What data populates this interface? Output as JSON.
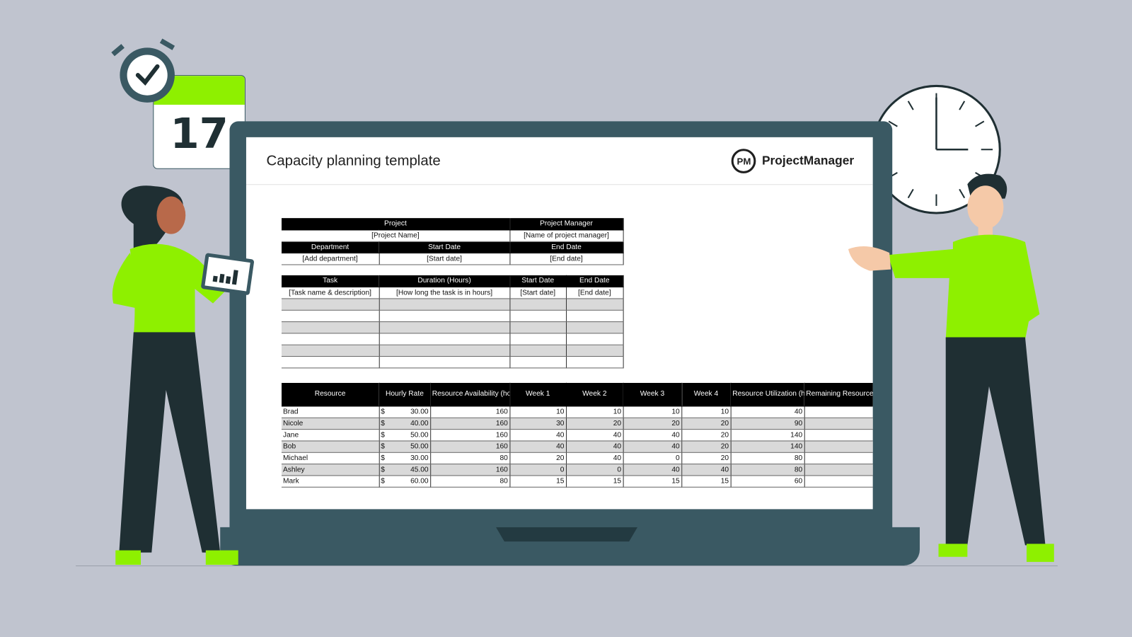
{
  "header": {
    "title": "Capacity planning template",
    "logo_mark": "PM",
    "logo_text": "ProjectManager"
  },
  "calendar": {
    "day": "17",
    "accent": "#8ef000"
  },
  "colors": {
    "background": "#c0c4cf",
    "laptop": "#3a5963",
    "accent_green": "#8ef000"
  },
  "project_table": {
    "headers1": [
      "Project",
      "Project Manager"
    ],
    "values1": [
      "[Project Name]",
      "[Name of project manager]"
    ],
    "headers2": [
      "Department",
      "Start Date",
      "End Date"
    ],
    "values2": [
      "[Add department]",
      "[Start date]",
      "[End date]"
    ]
  },
  "task_table": {
    "headers": [
      "Task",
      "Duration (Hours)",
      "Start Date",
      "End Date"
    ],
    "first_row": [
      "[Task name & description]",
      "[How long the task is in hours]",
      "[Start date]",
      "[End date]"
    ],
    "empty_rows": 6
  },
  "resource_table": {
    "headers": [
      "Resource",
      "Hourly Rate",
      "Resource Availability (hours per month)",
      "Week 1",
      "Week 2",
      "Week 3",
      "Week 4",
      "Resource Utilization (hours per month)",
      "Remaining Resource Availability (hou"
    ],
    "currency": "$",
    "rows": [
      {
        "name": "Brad",
        "rate": "30.00",
        "avail": "160",
        "w1": "10",
        "w2": "10",
        "w3": "10",
        "w4": "10",
        "util": "40"
      },
      {
        "name": "Nicole",
        "rate": "40.00",
        "avail": "160",
        "w1": "30",
        "w2": "20",
        "w3": "20",
        "w4": "20",
        "util": "90"
      },
      {
        "name": "Jane",
        "rate": "50.00",
        "avail": "160",
        "w1": "40",
        "w2": "40",
        "w3": "40",
        "w4": "20",
        "util": "140"
      },
      {
        "name": "Bob",
        "rate": "50.00",
        "avail": "160",
        "w1": "40",
        "w2": "40",
        "w3": "40",
        "w4": "20",
        "util": "140"
      },
      {
        "name": "Michael",
        "rate": "30.00",
        "avail": "80",
        "w1": "20",
        "w2": "40",
        "w3": "0",
        "w4": "20",
        "util": "80"
      },
      {
        "name": "Ashley",
        "rate": "45.00",
        "avail": "160",
        "w1": "0",
        "w2": "0",
        "w3": "40",
        "w4": "40",
        "util": "80"
      },
      {
        "name": "Mark",
        "rate": "60.00",
        "avail": "80",
        "w1": "15",
        "w2": "15",
        "w3": "15",
        "w4": "15",
        "util": "60"
      }
    ]
  }
}
